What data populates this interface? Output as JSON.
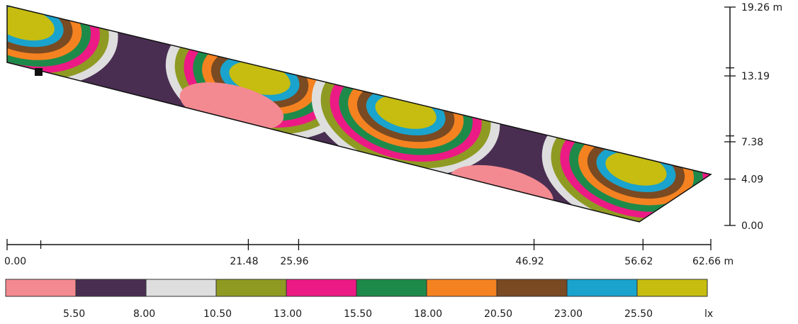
{
  "chart_data": {
    "type": "heatmap",
    "title": "",
    "x_axis": {
      "ticks": [
        "0.00",
        "21.48",
        "25.96",
        "46.92",
        "56.62",
        "62.66 m"
      ],
      "values": [
        0,
        21.48,
        25.96,
        46.92,
        56.62,
        62.66
      ],
      "unit": "m"
    },
    "y_axis": {
      "ticks": [
        "0.00",
        "4.09",
        "7.38",
        "13.19",
        "19.26 m"
      ],
      "values": [
        0,
        4.09,
        7.38,
        13.19,
        19.26
      ],
      "unit": "m"
    },
    "legend": {
      "unit": "lx",
      "boundaries": [
        "5.50",
        "8.00",
        "10.50",
        "13.00",
        "15.50",
        "18.00",
        "20.50",
        "23.00",
        "25.50"
      ],
      "colors": [
        "#f48a91",
        "#4a2e52",
        "#dedede",
        "#8f9a22",
        "#ec1a84",
        "#1e8a4a",
        "#f58220",
        "#7a4a22",
        "#1aa3cc",
        "#c6bd10"
      ]
    },
    "light_pools": [
      {
        "x": 1.5,
        "y": 17.8,
        "peak_level": 9
      },
      {
        "x": 22.5,
        "y": 13.0,
        "peak_level": 9
      },
      {
        "x": 35.5,
        "y": 10.0,
        "peak_level": 9
      },
      {
        "x": 56.0,
        "y": 5.0,
        "peak_level": 9
      }
    ]
  }
}
